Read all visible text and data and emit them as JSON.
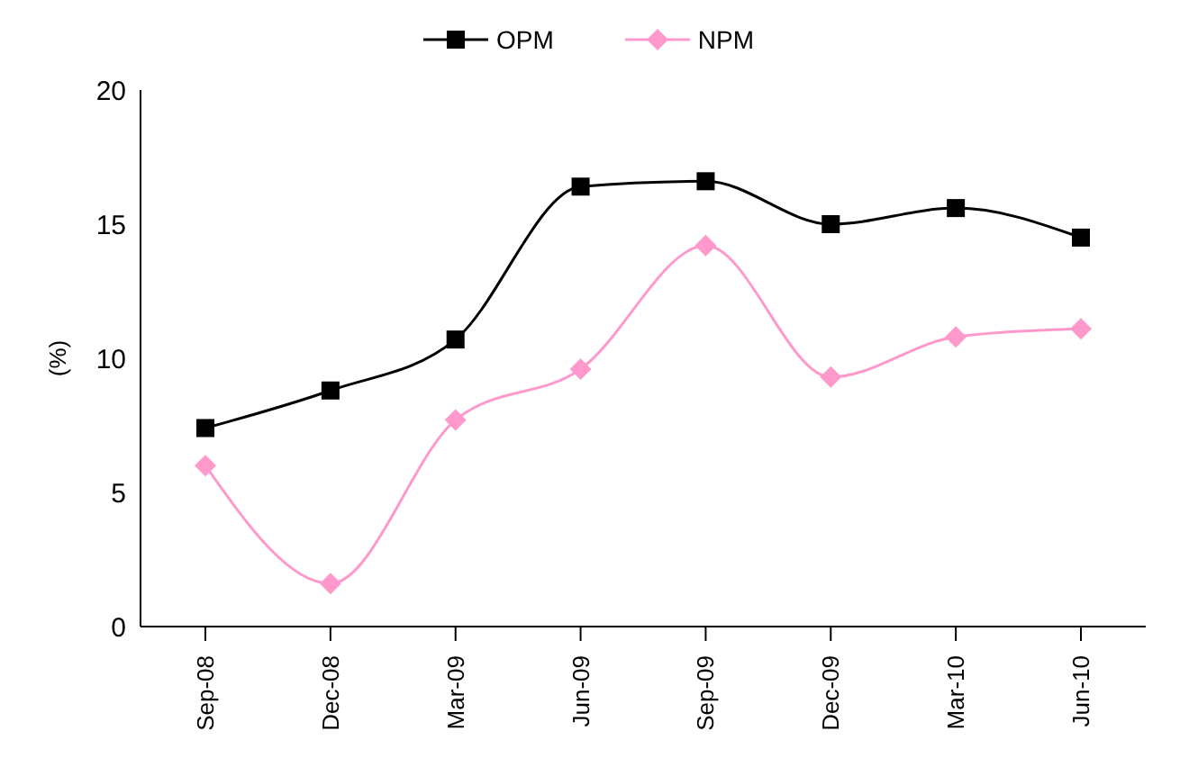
{
  "chart_data": {
    "type": "line",
    "ylabel": "(%)",
    "categories": [
      "Sep-08",
      "Dec-08",
      "Mar-09",
      "Jun-09",
      "Sep-09",
      "Dec-09",
      "Mar-10",
      "Jun-10"
    ],
    "series": [
      {
        "name": "OPM",
        "color": "#000000",
        "marker": "square",
        "values": [
          7.4,
          8.8,
          10.7,
          16.4,
          16.6,
          15.0,
          15.6,
          14.5
        ]
      },
      {
        "name": "NPM",
        "color": "#ff99cc",
        "marker": "diamond",
        "values": [
          6.0,
          1.6,
          7.7,
          9.6,
          14.2,
          9.3,
          10.8,
          11.1
        ]
      }
    ],
    "ylim": [
      0,
      20
    ],
    "yticks": [
      0,
      5,
      10,
      15,
      20
    ],
    "grid": false,
    "legend": "top"
  }
}
